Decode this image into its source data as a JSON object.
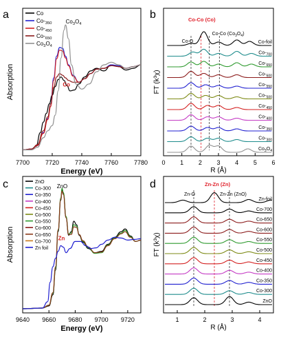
{
  "colors": {
    "black": "#000000",
    "blue": "#1f1fd0",
    "red": "#d42020",
    "darkred": "#8b1a1a",
    "green": "#2e9a2e",
    "olive": "#7d8a14",
    "magenta": "#c43ac4",
    "gray": "#909090",
    "teal": "#1e8c8c",
    "purple": "#6b3fa0",
    "orange": "#c87a1a",
    "brown": "#8b3a1a",
    "annot_red": "#e0202a"
  },
  "chart_data": [
    {
      "panel": "a",
      "type": "line",
      "xlabel": "Energy (eV)",
      "ylabel": "Absorption",
      "xlim": [
        7700,
        7780
      ],
      "xticks": [
        "7700",
        "7720",
        "7740",
        "7760",
        "7780"
      ],
      "legend": [
        "Co",
        "Co-350",
        "Co-450",
        "Co-650",
        "Co3O4"
      ],
      "legend_position": "top-left",
      "annotations": [
        {
          "text": "Co3O4",
          "x": 7731,
          "y": 1.32
        },
        {
          "text": "Co",
          "x": 7729,
          "y": 0.75
        }
      ],
      "series": [
        {
          "name": "Co",
          "color": "#000000",
          "x": [
            7700,
            7706,
            7709,
            7712,
            7714,
            7716,
            7718,
            7720,
            7722,
            7724,
            7726,
            7728,
            7730,
            7732,
            7735,
            7738,
            7742,
            7746,
            7750,
            7755,
            7760,
            7765,
            7770,
            7775,
            7780
          ],
          "y": [
            0.02,
            0.03,
            0.06,
            0.22,
            0.34,
            0.44,
            0.55,
            0.65,
            0.75,
            0.83,
            0.86,
            0.82,
            0.76,
            0.7,
            0.71,
            0.78,
            0.86,
            0.93,
            0.96,
            0.93,
            1.0,
            0.98,
            0.94,
            0.96,
            1.0
          ]
        },
        {
          "name": "Co-350",
          "color": "#1f1fd0",
          "x": [
            7700,
            7706,
            7710,
            7714,
            7717,
            7719,
            7721,
            7723,
            7725,
            7727,
            7729,
            7731,
            7734,
            7738,
            7742,
            7746,
            7750,
            7755,
            7760,
            7765,
            7770,
            7775,
            7780
          ],
          "y": [
            0.02,
            0.03,
            0.07,
            0.22,
            0.38,
            0.55,
            0.85,
            1.1,
            1.2,
            1.19,
            1.1,
            1.0,
            0.88,
            0.8,
            0.84,
            0.9,
            0.95,
            0.96,
            1.0,
            0.99,
            0.96,
            0.98,
            1.0
          ]
        },
        {
          "name": "Co-450",
          "color": "#d42020",
          "x": [
            7700,
            7706,
            7710,
            7714,
            7717,
            7719,
            7721,
            7723,
            7725,
            7727,
            7729,
            7731,
            7734,
            7738,
            7742,
            7746,
            7750,
            7755,
            7760,
            7765,
            7770,
            7775,
            7780
          ],
          "y": [
            0.02,
            0.03,
            0.07,
            0.21,
            0.37,
            0.52,
            0.82,
            1.07,
            1.17,
            1.16,
            1.08,
            0.99,
            0.87,
            0.8,
            0.84,
            0.9,
            0.95,
            0.96,
            0.99,
            0.98,
            0.96,
            0.98,
            1.0
          ]
        },
        {
          "name": "Co-650",
          "color": "#8b1a1a",
          "x": [
            7700,
            7706,
            7710,
            7714,
            7717,
            7719,
            7721,
            7723,
            7725,
            7727,
            7729,
            7731,
            7734,
            7738,
            7742,
            7746,
            7750,
            7755,
            7760,
            7765,
            7770,
            7775,
            7780
          ],
          "y": [
            0.02,
            0.03,
            0.08,
            0.24,
            0.4,
            0.55,
            0.74,
            0.86,
            0.9,
            0.88,
            0.85,
            0.82,
            0.8,
            0.8,
            0.84,
            0.9,
            0.95,
            0.96,
            0.99,
            0.98,
            0.96,
            0.98,
            1.0
          ]
        },
        {
          "name": "Co3O4",
          "color": "#909090",
          "x": [
            7700,
            7706,
            7710,
            7714,
            7717,
            7720,
            7722,
            7724,
            7726,
            7728,
            7729,
            7731,
            7733,
            7736,
            7740,
            7745,
            7750,
            7755,
            7760,
            7765,
            7770,
            7775,
            7780
          ],
          "y": [
            0.02,
            0.02,
            0.05,
            0.16,
            0.24,
            0.3,
            0.42,
            0.7,
            1.08,
            1.4,
            1.46,
            1.3,
            1.0,
            0.78,
            0.72,
            0.78,
            0.92,
            1.0,
            1.03,
            1.0,
            0.96,
            0.98,
            1.0
          ]
        }
      ]
    },
    {
      "panel": "b",
      "type": "line",
      "xlabel": "R (Å)",
      "ylabel": "FT (k³χ)",
      "xlim": [
        0,
        6
      ],
      "xticks": [
        "0",
        "1",
        "2",
        "3",
        "4",
        "5",
        "6"
      ],
      "annotations": [
        {
          "text": "Co-Co (Co)",
          "color": "red"
        },
        {
          "text": "Co-O"
        },
        {
          "text": "Co-Co (Co3O4)"
        }
      ],
      "dashed_lines": [
        1.5,
        2.05,
        2.5,
        3.05
      ],
      "series": [
        {
          "name": "Co-foil",
          "color": "#000000",
          "peaks": [
            [
              1.5,
              0.3
            ],
            [
              2.2,
              2.0
            ],
            [
              3.0,
              0.5
            ],
            [
              4.0,
              0.8
            ],
            [
              4.7,
              0.6
            ]
          ]
        },
        {
          "name": "Co-700",
          "color": "#1e8c8c",
          "peaks": [
            [
              1.6,
              0.6
            ],
            [
              2.2,
              1.0
            ],
            [
              3.0,
              0.4
            ],
            [
              4.0,
              0.7
            ],
            [
              4.8,
              0.4
            ]
          ]
        },
        {
          "name": "Co-650",
          "color": "#2e9a2e",
          "peaks": [
            [
              1.5,
              0.7
            ],
            [
              2.2,
              0.8
            ],
            [
              3.0,
              0.4
            ],
            [
              4.0,
              0.6
            ],
            [
              4.8,
              0.4
            ]
          ]
        },
        {
          "name": "Co-600",
          "color": "#8b1a1a",
          "peaks": [
            [
              1.5,
              0.9
            ],
            [
              2.2,
              0.6
            ],
            [
              3.0,
              0.4
            ],
            [
              4.0,
              0.4
            ]
          ]
        },
        {
          "name": "Co-550",
          "color": "#1f1fd0",
          "peaks": [
            [
              1.5,
              0.8
            ],
            [
              2.3,
              0.5
            ],
            [
              3.0,
              0.4
            ],
            [
              4.0,
              0.3
            ]
          ]
        },
        {
          "name": "Co-500",
          "color": "#7d8a14",
          "peaks": [
            [
              1.5,
              0.8
            ],
            [
              2.3,
              0.5
            ],
            [
              3.0,
              0.5
            ],
            [
              4.0,
              0.3
            ]
          ]
        },
        {
          "name": "Co-450",
          "color": "#d42020",
          "peaks": [
            [
              1.5,
              0.9
            ],
            [
              2.4,
              0.6
            ],
            [
              3.0,
              0.6
            ],
            [
              4.0,
              0.3
            ]
          ]
        },
        {
          "name": "Co-400",
          "color": "#c43ac4",
          "peaks": [
            [
              1.5,
              0.8
            ],
            [
              2.4,
              0.5
            ],
            [
              3.0,
              0.5
            ],
            [
              4.0,
              0.3
            ]
          ]
        },
        {
          "name": "Co-350",
          "color": "#1f1fd0",
          "peaks": [
            [
              1.5,
              0.7
            ],
            [
              2.4,
              0.5
            ],
            [
              3.0,
              0.5
            ],
            [
              4.0,
              0.3
            ]
          ]
        },
        {
          "name": "Co-300",
          "color": "#1e8c8c",
          "peaks": [
            [
              1.5,
              0.7
            ],
            [
              2.4,
              0.5
            ],
            [
              3.0,
              0.5
            ],
            [
              4.0,
              0.3
            ]
          ]
        },
        {
          "name": "Co3O4",
          "color": "#909090",
          "peaks": [
            [
              1.5,
              0.9
            ],
            [
              2.5,
              1.0
            ],
            [
              3.0,
              0.9
            ],
            [
              4.6,
              0.5
            ]
          ]
        }
      ]
    },
    {
      "panel": "c",
      "type": "line",
      "xlabel": "Energy (eV)",
      "ylabel": "Absorption",
      "xlim": [
        9640,
        9730
      ],
      "xticks": [
        "9640",
        "9660",
        "9680",
        "9700",
        "9720"
      ],
      "legend": [
        "ZnO",
        "Co-300",
        "Co-350",
        "Co-400",
        "Co-450",
        "Co-500",
        "Co-550",
        "Co-600",
        "Co-650",
        "Co-700",
        "Zn foil"
      ],
      "legend_position": "top-left",
      "annotations": [
        {
          "text": "ZnO"
        },
        {
          "text": "Zn",
          "color": "red"
        }
      ],
      "series": [
        {
          "name": "ZnO",
          "color": "#000000",
          "x": [
            9640,
            9655,
            9660,
            9663,
            9665,
            9667,
            9669,
            9670,
            9671,
            9673,
            9675,
            9677,
            9679,
            9681,
            9683,
            9686,
            9690,
            9695,
            9700,
            9705,
            9710,
            9715,
            9718,
            9722,
            9726,
            9730
          ],
          "y": [
            0.0,
            0.01,
            0.04,
            0.2,
            0.55,
            1.1,
            1.55,
            1.7,
            1.65,
            1.3,
            1.05,
            1.1,
            1.25,
            1.2,
            1.05,
            0.95,
            0.86,
            0.8,
            0.82,
            0.92,
            1.02,
            1.1,
            1.14,
            1.04,
            0.96,
            0.98
          ]
        },
        {
          "name": "Co-300",
          "color": "#2e9a2e",
          "x": [
            9640,
            9655,
            9660,
            9663,
            9665,
            9667,
            9669,
            9670,
            9671,
            9673,
            9675,
            9677,
            9679,
            9681,
            9683,
            9686,
            9690,
            9695,
            9700,
            9705,
            9710,
            9715,
            9718,
            9722,
            9726,
            9730
          ],
          "y": [
            0.0,
            0.01,
            0.05,
            0.22,
            0.58,
            1.12,
            1.58,
            1.72,
            1.66,
            1.32,
            1.07,
            1.08,
            1.2,
            1.18,
            1.06,
            0.96,
            0.87,
            0.79,
            0.8,
            0.91,
            1.01,
            1.08,
            1.12,
            1.03,
            0.96,
            0.98
          ]
        },
        {
          "name": "Co-700",
          "color": "#8b3a1a",
          "x": [
            9640,
            9655,
            9660,
            9663,
            9665,
            9667,
            9669,
            9670,
            9671,
            9673,
            9675,
            9677,
            9679,
            9681,
            9683,
            9686,
            9690,
            9695,
            9700,
            9705,
            9710,
            9715,
            9718,
            9722,
            9726,
            9730
          ],
          "y": [
            0.0,
            0.01,
            0.05,
            0.23,
            0.6,
            1.13,
            1.56,
            1.68,
            1.63,
            1.3,
            1.06,
            1.06,
            1.17,
            1.16,
            1.06,
            0.97,
            0.88,
            0.8,
            0.81,
            0.9,
            1.0,
            1.07,
            1.1,
            1.02,
            0.96,
            0.98
          ]
        },
        {
          "name": "Zn foil",
          "color": "#1f1fd0",
          "x": [
            9640,
            9655,
            9659,
            9661,
            9663,
            9665,
            9667,
            9669,
            9671,
            9673,
            9676,
            9680,
            9684,
            9688,
            9692,
            9696,
            9700,
            9705,
            9710,
            9715,
            9720,
            9725,
            9730
          ],
          "y": [
            0.0,
            0.01,
            0.1,
            0.38,
            0.6,
            0.72,
            0.82,
            0.9,
            0.88,
            0.8,
            0.86,
            0.96,
            0.96,
            0.9,
            0.86,
            0.87,
            0.92,
            0.98,
            1.02,
            1.01,
            0.98,
            0.99,
            1.0
          ]
        }
      ]
    },
    {
      "panel": "d",
      "type": "line",
      "xlabel": "R (Å)",
      "ylabel": "FT (k³χ)",
      "xlim": [
        0.5,
        4.5
      ],
      "xticks": [
        "1",
        "2",
        "3",
        "4"
      ],
      "annotations": [
        {
          "text": "Zn-Zn (Zn)",
          "color": "red"
        },
        {
          "text": "Zn-O"
        },
        {
          "text": "Zn-Zn (ZnO)"
        }
      ],
      "dashed_lines": [
        1.6,
        2.35,
        2.9
      ],
      "series": [
        {
          "name": "Zn-foil",
          "color": "#000000",
          "peaks": [
            [
              1.2,
              0.4
            ],
            [
              2.35,
              1.6
            ],
            [
              3.6,
              0.5
            ],
            [
              4.4,
              0.4
            ]
          ]
        },
        {
          "name": "Co-700",
          "color": "#000000",
          "peaks": [
            [
              1.6,
              1.0
            ],
            [
              2.9,
              0.6
            ],
            [
              3.6,
              0.3
            ]
          ]
        },
        {
          "name": "Co-650",
          "color": "#8b1a1a",
          "peaks": [
            [
              1.6,
              1.0
            ],
            [
              2.9,
              0.6
            ],
            [
              3.6,
              0.3
            ]
          ]
        },
        {
          "name": "Co-600",
          "color": "#8b1a1a",
          "peaks": [
            [
              1.6,
              1.0
            ],
            [
              2.9,
              0.6
            ],
            [
              3.6,
              0.3
            ]
          ]
        },
        {
          "name": "Co-550",
          "color": "#2e9a2e",
          "peaks": [
            [
              1.6,
              1.0
            ],
            [
              2.9,
              0.6
            ],
            [
              3.6,
              0.3
            ]
          ]
        },
        {
          "name": "Co-500",
          "color": "#7d8a14",
          "peaks": [
            [
              1.6,
              1.0
            ],
            [
              2.9,
              0.6
            ],
            [
              3.6,
              0.3
            ]
          ]
        },
        {
          "name": "Co-450",
          "color": "#d42020",
          "peaks": [
            [
              1.6,
              1.0
            ],
            [
              2.9,
              0.6
            ],
            [
              3.6,
              0.3
            ]
          ]
        },
        {
          "name": "Co-400",
          "color": "#c43ac4",
          "peaks": [
            [
              1.6,
              1.0
            ],
            [
              2.9,
              0.6
            ],
            [
              3.6,
              0.3
            ]
          ]
        },
        {
          "name": "Co-350",
          "color": "#1f1fd0",
          "peaks": [
            [
              1.6,
              1.0
            ],
            [
              2.9,
              0.6
            ],
            [
              3.6,
              0.3
            ]
          ]
        },
        {
          "name": "Co-300",
          "color": "#1e8c8c",
          "peaks": [
            [
              1.6,
              1.0
            ],
            [
              2.9,
              0.6
            ],
            [
              3.6,
              0.3
            ]
          ]
        },
        {
          "name": "ZnO",
          "color": "#000000",
          "peaks": [
            [
              1.6,
              1.1
            ],
            [
              2.9,
              1.3
            ],
            [
              3.6,
              0.4
            ]
          ]
        }
      ]
    }
  ],
  "labels": {
    "panel_a": "a",
    "panel_b": "b",
    "panel_c": "c",
    "panel_d": "d"
  }
}
